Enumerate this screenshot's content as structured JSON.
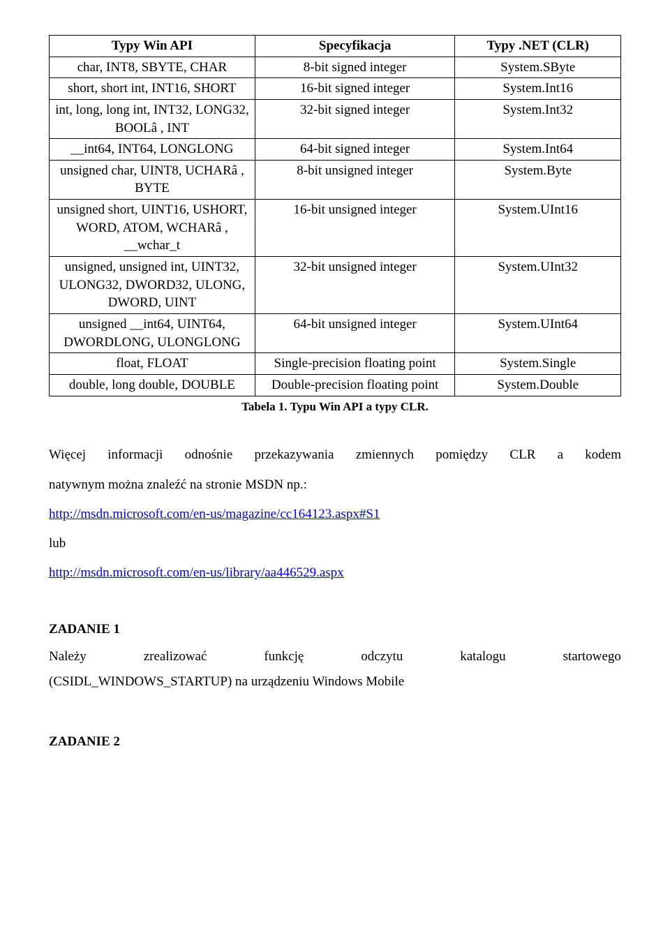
{
  "table": {
    "headers": [
      "Typy Win API",
      "Specyfikacja",
      "Typy .NET (CLR)"
    ],
    "rows": [
      [
        "char, INT8, SBYTE, CHAR",
        "8-bit signed integer",
        "System.SByte"
      ],
      [
        "short, short int, INT16, SHORT",
        "16-bit signed integer",
        "System.Int16"
      ],
      [
        "int, long, long int, INT32, LONG32, BOOLâ , INT",
        "32-bit signed integer",
        "System.Int32"
      ],
      [
        "__int64, INT64, LONGLONG",
        "64-bit signed integer",
        "System.Int64"
      ],
      [
        "unsigned char, UINT8, UCHARâ , BYTE",
        "8-bit unsigned integer",
        "System.Byte"
      ],
      [
        "unsigned short, UINT16, USHORT, WORD, ATOM, WCHARâ , __wchar_t",
        "16-bit unsigned integer",
        "System.UInt16"
      ],
      [
        "unsigned, unsigned int, UINT32, ULONG32, DWORD32, ULONG, DWORD, UINT",
        "32-bit unsigned integer",
        "System.UInt32"
      ],
      [
        "unsigned __int64, UINT64, DWORDLONG, ULONGLONG",
        "64-bit unsigned integer",
        "System.UInt64"
      ],
      [
        "float, FLOAT",
        "Single-precision floating point",
        "System.Single"
      ],
      [
        "double, long double, DOUBLE",
        "Double-precision floating point",
        "System.Double"
      ]
    ],
    "col_widths": [
      "36%",
      "35%",
      "29%"
    ],
    "border_color": "#000000"
  },
  "caption": "Tabela 1. Typu Win API a typy CLR.",
  "para1a": "Więcej informacji odnośnie przekazywania zmiennych pomiędzy CLR a kodem",
  "para1b": "natywnym można znaleźć na stronie MSDN np.:",
  "link1": "http://msdn.microsoft.com/en-us/magazine/cc164123.aspx#S1",
  "lub": "lub",
  "link2": "http://msdn.microsoft.com/en-us/library/aa446529.aspx",
  "zad1_head": "ZADANIE 1",
  "zad1_words": [
    "Należy",
    "zrealizować",
    "funkcję",
    "odczytu",
    "katalogu",
    "startowego"
  ],
  "zad1_line2": "(CSIDL_WINDOWS_STARTUP) na urządzeniu Windows Mobile",
  "zad2_head": "ZADANIE 2",
  "colors": {
    "link": "#0000ee",
    "text": "#000000",
    "bg": "#ffffff"
  },
  "fonts": {
    "body_pt": 19,
    "caption_pt": 17,
    "family": "Times New Roman"
  }
}
